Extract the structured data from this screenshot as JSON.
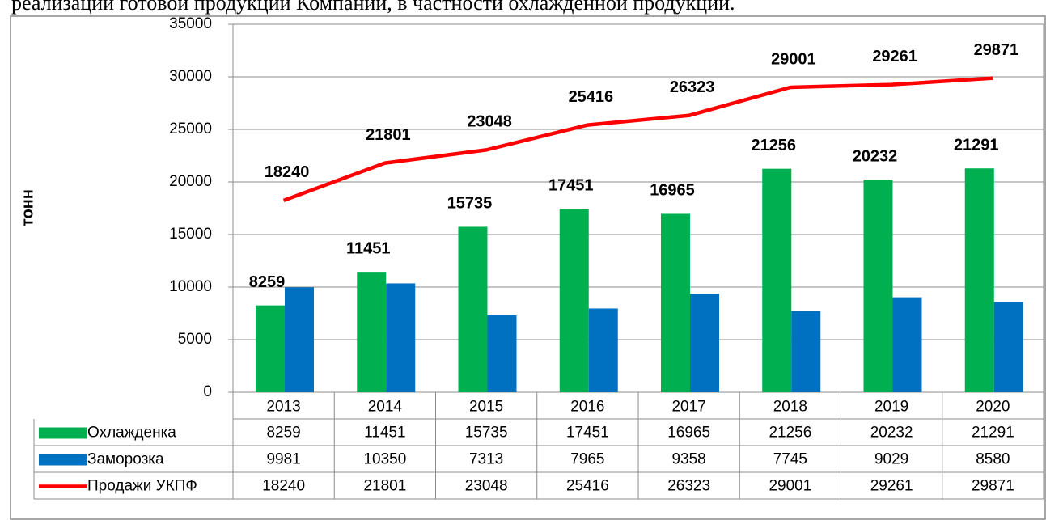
{
  "note": "реализации готовой продукции Компании, в частности охлажденной продукции.",
  "chart_data": {
    "type": "bar",
    "y_label": "тонн",
    "categories": [
      "2013",
      "2014",
      "2015",
      "2016",
      "2017",
      "2018",
      "2019",
      "2020"
    ],
    "series": [
      {
        "name": "Охлажденка",
        "color": "#00b050",
        "type": "bar",
        "data_labels": true,
        "values": [
          8259,
          11451,
          15735,
          17451,
          16965,
          21256,
          20232,
          21291
        ]
      },
      {
        "name": "Заморозка",
        "color": "#0070c0",
        "type": "bar",
        "data_labels": false,
        "values": [
          9981,
          10350,
          7313,
          7965,
          9358,
          7745,
          9029,
          8580
        ]
      },
      {
        "name": "Продажи УКПФ",
        "color": "#ff0000",
        "type": "line",
        "data_labels": true,
        "values": [
          18240,
          21801,
          23048,
          25416,
          26323,
          29001,
          29261,
          29871
        ]
      }
    ],
    "ylim": [
      0,
      35000
    ],
    "yticks": [
      0,
      5000,
      10000,
      15000,
      20000,
      25000,
      30000,
      35000
    ],
    "grid": true,
    "data_table": true
  }
}
